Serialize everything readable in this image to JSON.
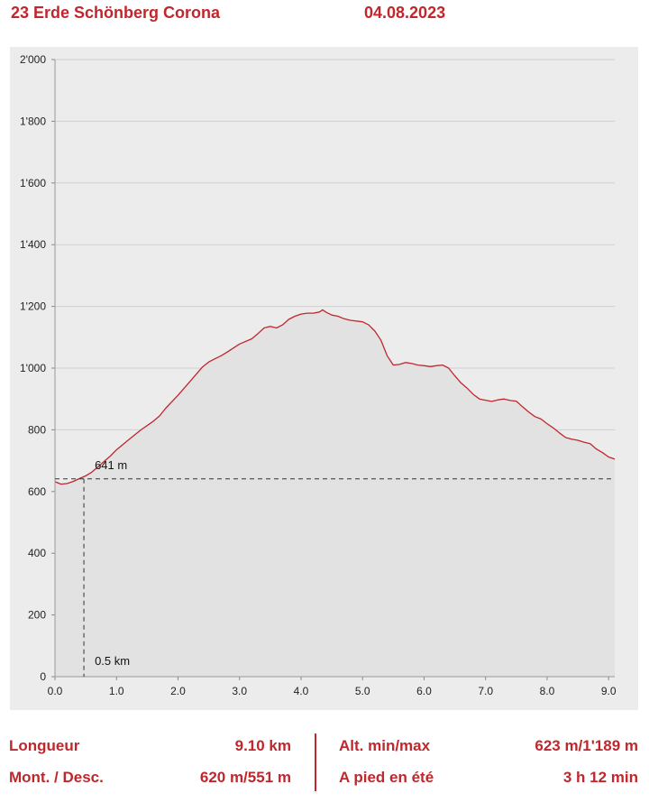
{
  "header": {
    "title": "23 Erde Schönberg Corona",
    "date": "04.08.2023"
  },
  "chart_data": {
    "type": "area",
    "xlim": [
      0,
      9.1
    ],
    "ylim": [
      0,
      2000
    ],
    "x_ticks": [
      0,
      1,
      2,
      3,
      4,
      5,
      6,
      7,
      8,
      9
    ],
    "x_tick_labels": [
      "0.0",
      "1.0",
      "2.0",
      "3.0",
      "4.0",
      "5.0",
      "6.0",
      "7.0",
      "8.0",
      "9.0"
    ],
    "y_ticks": [
      0,
      200,
      400,
      600,
      800,
      1000,
      1200,
      1400,
      1600,
      1800,
      2000
    ],
    "y_tick_labels": [
      "0",
      "200",
      "400",
      "600",
      "800",
      "1'000",
      "1'200",
      "1'400",
      "1'600",
      "1'800",
      "2'000"
    ],
    "grid": true,
    "colors": {
      "line": "#c0272d",
      "fill": "#e2e2e2",
      "background": "#ececec",
      "grid": "#d0d0d0"
    },
    "x": [
      0,
      0.1,
      0.2,
      0.3,
      0.4,
      0.5,
      0.6,
      0.7,
      0.8,
      0.9,
      1.0,
      1.2,
      1.4,
      1.6,
      1.7,
      1.8,
      2.0,
      2.2,
      2.4,
      2.5,
      2.6,
      2.7,
      2.8,
      3.0,
      3.2,
      3.3,
      3.4,
      3.5,
      3.6,
      3.7,
      3.8,
      3.9,
      4.0,
      4.1,
      4.2,
      4.3,
      4.35,
      4.4,
      4.5,
      4.6,
      4.7,
      4.8,
      5.0,
      5.1,
      5.2,
      5.3,
      5.4,
      5.5,
      5.6,
      5.7,
      5.8,
      5.9,
      6.0,
      6.1,
      6.2,
      6.3,
      6.4,
      6.5,
      6.6,
      6.7,
      6.8,
      6.9,
      7.0,
      7.1,
      7.2,
      7.3,
      7.4,
      7.5,
      7.6,
      7.7,
      7.8,
      7.9,
      8.0,
      8.1,
      8.2,
      8.3,
      8.4,
      8.5,
      8.6,
      8.7,
      8.8,
      8.9,
      9.0,
      9.1
    ],
    "y": [
      632,
      624,
      626,
      633,
      642,
      651,
      663,
      680,
      698,
      715,
      735,
      768,
      800,
      828,
      845,
      870,
      912,
      958,
      1004,
      1020,
      1030,
      1040,
      1052,
      1078,
      1095,
      1112,
      1130,
      1135,
      1130,
      1140,
      1158,
      1168,
      1175,
      1178,
      1178,
      1182,
      1189,
      1182,
      1172,
      1168,
      1160,
      1155,
      1150,
      1140,
      1120,
      1090,
      1040,
      1010,
      1012,
      1018,
      1015,
      1010,
      1008,
      1005,
      1008,
      1010,
      1000,
      975,
      952,
      935,
      915,
      900,
      896,
      892,
      897,
      900,
      895,
      893,
      875,
      858,
      843,
      835,
      820,
      806,
      790,
      775,
      770,
      766,
      760,
      755,
      738,
      726,
      712,
      705
    ],
    "annotations": {
      "point_label": "641 m",
      "distance_label": "0.5 km",
      "point_x": 0.47,
      "point_y": 641
    }
  },
  "stats": {
    "length_label": "Longueur",
    "length_value": "9.10 km",
    "updown_label": "Mont. / Desc.",
    "updown_value": "620 m/551 m",
    "altminmax_label": "Alt. min/max",
    "altminmax_value": "623 m/1'189 m",
    "walktime_label": "A pied en été",
    "walktime_value": "3 h 12 min"
  }
}
